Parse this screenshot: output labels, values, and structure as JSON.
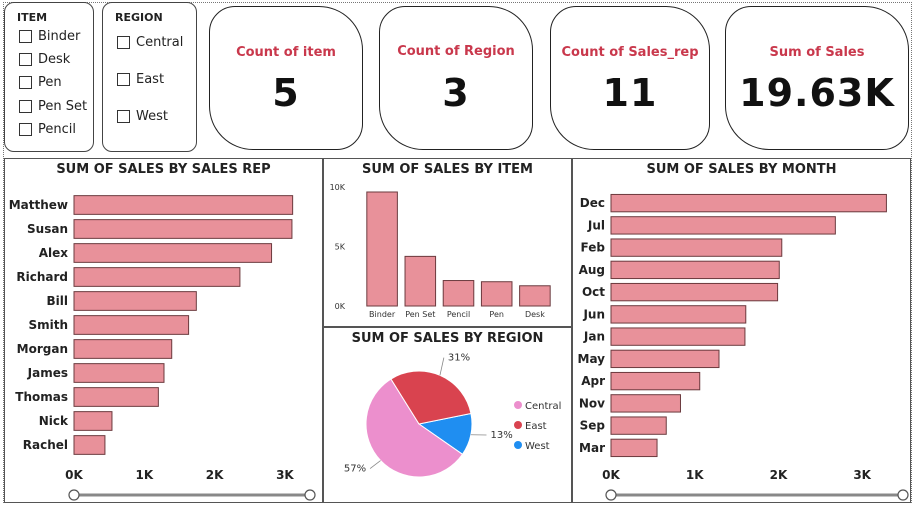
{
  "slicers": {
    "item": {
      "title": "ITEM",
      "options": [
        "Binder",
        "Desk",
        "Pen",
        "Pen Set",
        "Pencil"
      ]
    },
    "region": {
      "title": "REGION",
      "options": [
        "Central",
        "East",
        "West"
      ]
    }
  },
  "cards": [
    {
      "label": "Count of item",
      "value": "5"
    },
    {
      "label": "Count of Region",
      "value": "3"
    },
    {
      "label": "Count of Sales_rep",
      "value": "11"
    },
    {
      "label": "Sum of Sales",
      "value": "19.63K"
    }
  ],
  "colors": {
    "bar": "#e8919a",
    "bar_stroke": "#6b3a3e",
    "card_label": "#c9384c",
    "central": "#ec8fcd",
    "east": "#d9434f",
    "west": "#1f8ef1"
  },
  "chart_data": [
    {
      "type": "bar",
      "orientation": "horizontal",
      "title": "SUM OF SALES BY SALES REP",
      "categories": [
        "Matthew",
        "Susan",
        "Alex",
        "Richard",
        "Bill",
        "Smith",
        "Morgan",
        "James",
        "Thomas",
        "Nick",
        "Rachel"
      ],
      "values": [
        3110,
        3100,
        2810,
        2360,
        1740,
        1630,
        1390,
        1280,
        1200,
        540,
        440
      ],
      "xlim": [
        0,
        3300
      ],
      "x_ticks": [
        0,
        1000,
        2000,
        3000
      ],
      "x_tick_labels": [
        "0K",
        "1K",
        "2K",
        "3K"
      ],
      "grid": false
    },
    {
      "type": "bar",
      "orientation": "vertical",
      "title": "SUM OF SALES BY ITEM",
      "categories": [
        "Binder",
        "Pen Set",
        "Pencil",
        "Pen",
        "Desk"
      ],
      "values": [
        9580,
        4170,
        2140,
        2040,
        1700
      ],
      "ylim": [
        0,
        10000
      ],
      "y_ticks": [
        0,
        5000,
        10000
      ],
      "y_tick_labels": [
        "0K",
        "5K",
        "10K"
      ],
      "grid": false
    },
    {
      "type": "pie",
      "title": "SUM OF SALES BY REGION",
      "categories": [
        "Central",
        "East",
        "West"
      ],
      "values": [
        57,
        31,
        13
      ],
      "labels": [
        "57%",
        "31%",
        "13%"
      ],
      "legend": "right"
    },
    {
      "type": "bar",
      "orientation": "horizontal",
      "title": "SUM OF SALES BY MONTH",
      "categories": [
        "Dec",
        "Jul",
        "Feb",
        "Aug",
        "Oct",
        "Jun",
        "Jan",
        "May",
        "Apr",
        "Nov",
        "Sep",
        "Mar"
      ],
      "values": [
        3290,
        2680,
        2040,
        2010,
        1990,
        1610,
        1600,
        1290,
        1060,
        830,
        660,
        550
      ],
      "xlim": [
        0,
        3500
      ],
      "x_ticks": [
        0,
        1000,
        2000,
        3000
      ],
      "x_tick_labels": [
        "0K",
        "1K",
        "2K",
        "3K"
      ],
      "grid": false
    }
  ]
}
